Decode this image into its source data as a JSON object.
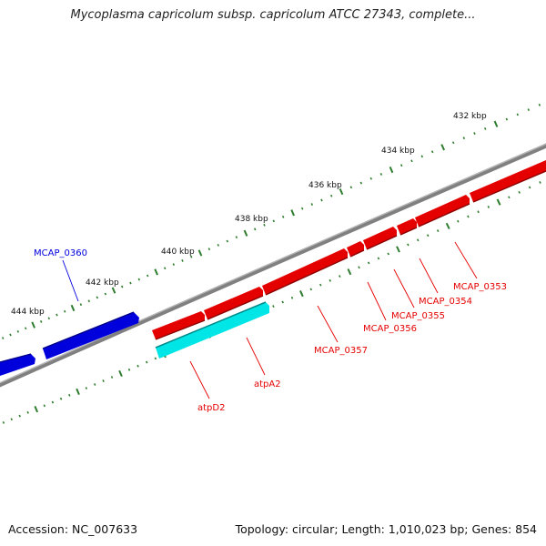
{
  "title": "Mycoplasma capricolum subsp. capricolum ATCC 27343, complete...",
  "footer": {
    "accession": "Accession: NC_007633",
    "summary": "Topology: circular; Length: 1,010,023 bp; Genes: 854"
  },
  "colors": {
    "backbone": "#808080",
    "ticks": "#2e7d2e",
    "gene_red": "#e50000",
    "gene_blue": "#0000dd",
    "gene_cyan": "#00e5e5"
  },
  "kbp_labels": [
    "444 kbp",
    "442 kbp",
    "440 kbp",
    "438 kbp",
    "436 kbp",
    "434 kbp",
    "432 kbp"
  ],
  "genes": [
    {
      "label": "MCAP_0353",
      "color": "red"
    },
    {
      "label": "MCAP_0354",
      "color": "red"
    },
    {
      "label": "MCAP_0355",
      "color": "red"
    },
    {
      "label": "MCAP_0356",
      "color": "red"
    },
    {
      "label": "MCAP_0357",
      "color": "red"
    },
    {
      "label": "atpA2",
      "color": "red"
    },
    {
      "label": "atpD2",
      "color": "red"
    },
    {
      "label": "MCAP_0360",
      "color": "blue"
    }
  ]
}
